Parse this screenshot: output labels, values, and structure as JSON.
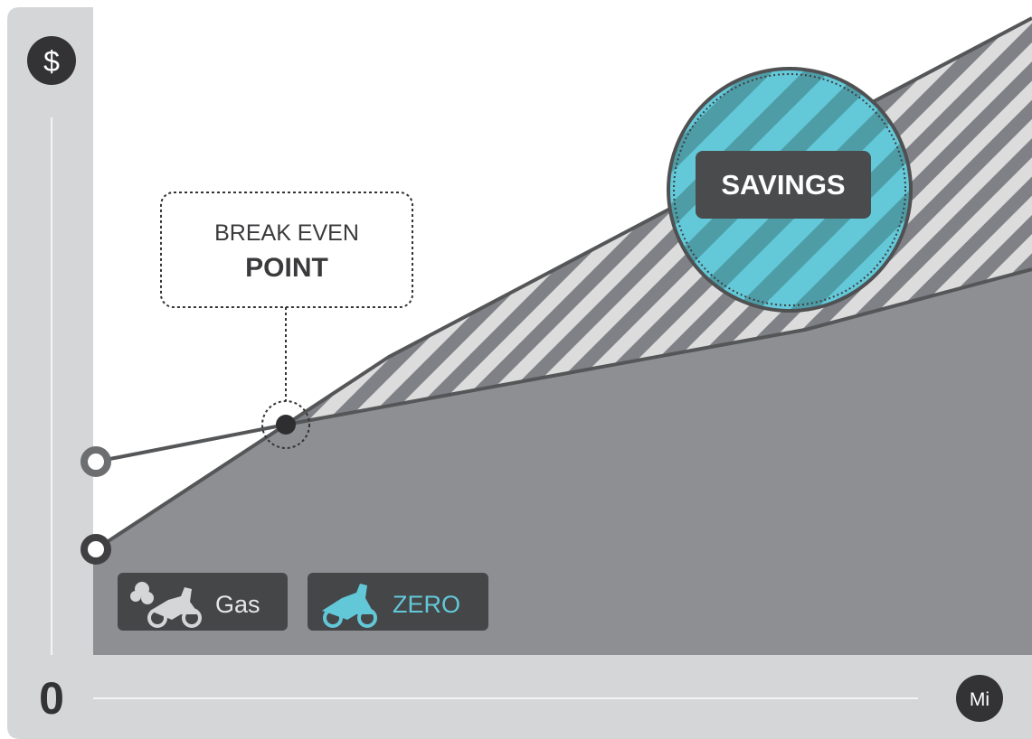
{
  "axis": {
    "y_icon": "$",
    "origin": "0",
    "x_icon": "Mi"
  },
  "callout": {
    "line1": "BREAK EVEN",
    "line2": "POINT"
  },
  "savings": "SAVINGS",
  "legend": [
    {
      "label": "Gas"
    },
    {
      "label": "ZERO"
    }
  ]
}
